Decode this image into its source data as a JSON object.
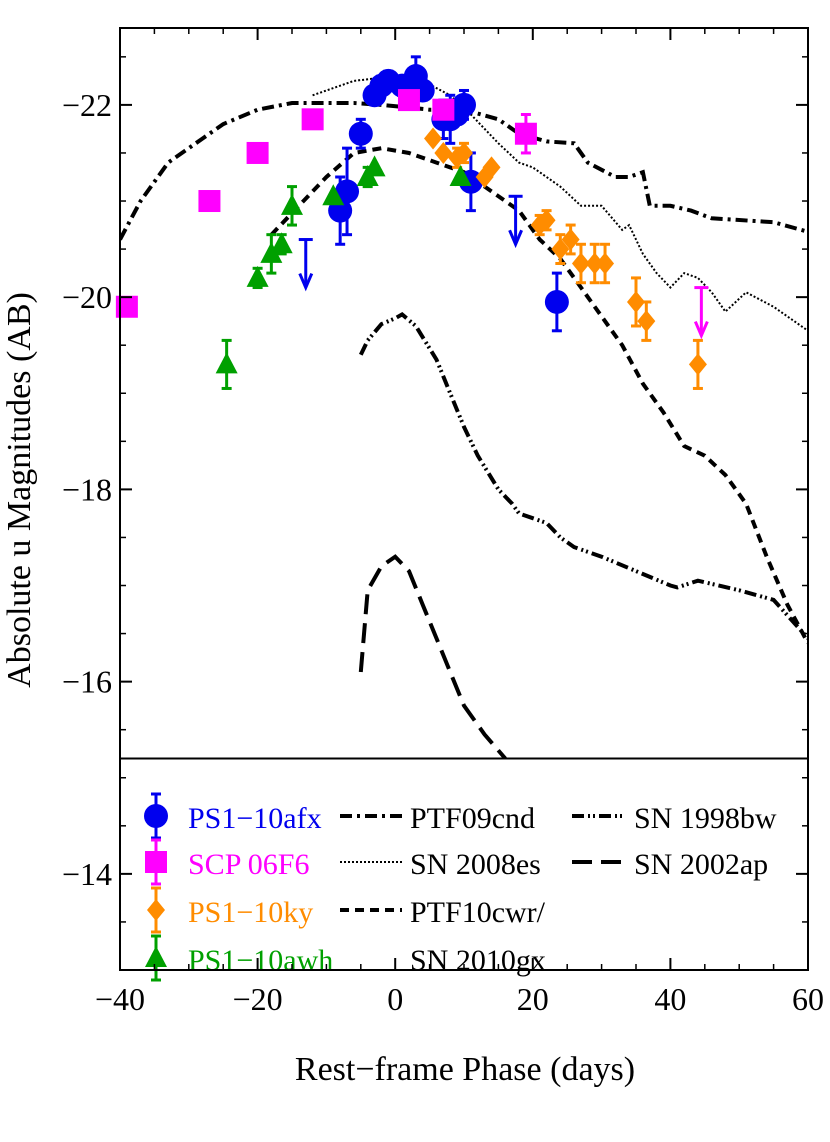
{
  "chart_data": {
    "type": "scatter",
    "xlabel": "Rest−frame Phase (days)",
    "ylabel": "Absolute u Magnitudes (AB)",
    "xlim": [
      -40,
      60
    ],
    "ylim": [
      -13,
      -22.8
    ],
    "y_inverted": true,
    "x_ticks": [
      -40,
      -20,
      0,
      20,
      40,
      60
    ],
    "x_tick_labels": [
      "−40",
      "−20",
      "0",
      "20",
      "40",
      "60"
    ],
    "y_ticks": [
      -14,
      -16,
      -18,
      -20,
      -22
    ],
    "y_tick_labels": [
      "−14",
      "−16",
      "−18",
      "−20",
      "−22"
    ],
    "legend_divider_y": -15.2,
    "points": [
      {
        "name": "PS1−10afx",
        "color": "#0000ee",
        "marker": "circle",
        "data": [
          {
            "x": -8,
            "y": -20.9,
            "err": 0.35
          },
          {
            "x": -7,
            "y": -21.1,
            "err": 0.45
          },
          {
            "x": -5,
            "y": -21.7,
            "err": 0.15
          },
          {
            "x": -3,
            "y": -22.1,
            "err": 0.1
          },
          {
            "x": -2,
            "y": -22.2,
            "err": 0.1
          },
          {
            "x": -1,
            "y": -22.25,
            "err": 0.1
          },
          {
            "x": 1,
            "y": -22.2,
            "err": 0.1
          },
          {
            "x": 3,
            "y": -22.3,
            "err": 0.2
          },
          {
            "x": 4,
            "y": -22.15,
            "err": 0.1
          },
          {
            "x": 7,
            "y": -21.85,
            "err": 0.2
          },
          {
            "x": 8,
            "y": -21.85,
            "err": 0.25
          },
          {
            "x": 9,
            "y": -21.9,
            "err": 0.1
          },
          {
            "x": 10,
            "y": -22.0,
            "err": 0.15
          },
          {
            "x": 11,
            "y": -21.2,
            "err": 0.3
          },
          {
            "x": 23.5,
            "y": -19.95,
            "err": 0.3
          }
        ]
      },
      {
        "name": "SCP 06F6",
        "color": "#ff00ff",
        "marker": "square",
        "data": [
          {
            "x": -39,
            "y": -19.9,
            "err": 0
          },
          {
            "x": -27,
            "y": -21.0,
            "err": 0
          },
          {
            "x": -20,
            "y": -21.5,
            "err": 0
          },
          {
            "x": -12,
            "y": -21.85,
            "err": 0
          },
          {
            "x": 2,
            "y": -22.05,
            "err": 0
          },
          {
            "x": 7,
            "y": -21.95,
            "err": 0
          },
          {
            "x": 19,
            "y": -21.7,
            "err": 0.2
          }
        ]
      },
      {
        "name": "PS1−10ky",
        "color": "#ff8c00",
        "marker": "diamond",
        "data": [
          {
            "x": 5.5,
            "y": -21.65,
            "err": 0
          },
          {
            "x": 7,
            "y": -21.5,
            "err": 0
          },
          {
            "x": 9,
            "y": -21.45,
            "err": 0.1
          },
          {
            "x": 10,
            "y": -21.5,
            "err": 0.1
          },
          {
            "x": 13,
            "y": -21.25,
            "err": 0
          },
          {
            "x": 14,
            "y": -21.35,
            "err": 0
          },
          {
            "x": 21,
            "y": -20.75,
            "err": 0.1
          },
          {
            "x": 22,
            "y": -20.8,
            "err": 0.1
          },
          {
            "x": 24,
            "y": -20.5,
            "err": 0.15
          },
          {
            "x": 25.5,
            "y": -20.6,
            "err": 0.15
          },
          {
            "x": 27,
            "y": -20.35,
            "err": 0.2
          },
          {
            "x": 29,
            "y": -20.35,
            "err": 0.2
          },
          {
            "x": 30.5,
            "y": -20.35,
            "err": 0.2
          },
          {
            "x": 35,
            "y": -19.95,
            "err": 0.25
          },
          {
            "x": 36.5,
            "y": -19.75,
            "err": 0.2
          },
          {
            "x": 44,
            "y": -19.3,
            "err": 0.25
          }
        ]
      },
      {
        "name": "PS1−10awh",
        "color": "#00a000",
        "marker": "triangle",
        "data": [
          {
            "x": -24.5,
            "y": -19.3,
            "err": 0.25
          },
          {
            "x": -20,
            "y": -20.2,
            "err": 0.1
          },
          {
            "x": -18,
            "y": -20.45,
            "err": 0.2
          },
          {
            "x": -16.5,
            "y": -20.55,
            "err": 0.1
          },
          {
            "x": -15,
            "y": -20.95,
            "err": 0.2
          },
          {
            "x": -9,
            "y": -21.05,
            "err": 0
          },
          {
            "x": -4,
            "y": -21.25,
            "err": 0.1
          },
          {
            "x": -3,
            "y": -21.35,
            "err": 0
          },
          {
            "x": 9.5,
            "y": -21.25,
            "err": 0
          }
        ]
      }
    ],
    "upper_limits": [
      {
        "x": -13,
        "y": -20.1,
        "color": "#0000ee"
      },
      {
        "x": 17.5,
        "y": -20.55,
        "color": "#0000ee"
      },
      {
        "x": 44.5,
        "y": -19.6,
        "color": "#ff00ff"
      }
    ],
    "lines": [
      {
        "name": "PTF09cnd",
        "style": "dashdot",
        "data": [
          [
            -40,
            -20.6
          ],
          [
            -37,
            -21.0
          ],
          [
            -33,
            -21.4
          ],
          [
            -28,
            -21.65
          ],
          [
            -25,
            -21.8
          ],
          [
            -20,
            -21.95
          ],
          [
            -15,
            -22.02
          ],
          [
            -10,
            -22.02
          ],
          [
            -6,
            -22.02
          ],
          [
            -2,
            -22.0
          ],
          [
            1,
            -21.98
          ],
          [
            5,
            -21.95
          ],
          [
            10,
            -21.95
          ],
          [
            15,
            -21.85
          ],
          [
            18,
            -21.7
          ],
          [
            22,
            -21.62
          ],
          [
            26,
            -21.6
          ],
          [
            28,
            -21.4
          ],
          [
            32,
            -21.25
          ],
          [
            34,
            -21.25
          ],
          [
            36,
            -21.3
          ],
          [
            37,
            -20.95
          ],
          [
            40,
            -20.95
          ],
          [
            43,
            -20.9
          ],
          [
            46,
            -20.82
          ],
          [
            55,
            -20.78
          ],
          [
            60,
            -20.68
          ]
        ]
      },
      {
        "name": "SN 2008es",
        "style": "dotted",
        "data": [
          [
            -12,
            -22.1
          ],
          [
            -6,
            -22.25
          ],
          [
            0,
            -22.3
          ],
          [
            4,
            -22.25
          ],
          [
            8,
            -22.1
          ],
          [
            11,
            -21.9
          ],
          [
            15,
            -21.6
          ],
          [
            18,
            -21.4
          ],
          [
            20,
            -21.35
          ],
          [
            24,
            -21.15
          ],
          [
            27,
            -20.95
          ],
          [
            30,
            -20.95
          ],
          [
            33,
            -20.7
          ],
          [
            34,
            -20.75
          ],
          [
            36,
            -20.45
          ],
          [
            38,
            -20.25
          ],
          [
            40,
            -20.1
          ],
          [
            42,
            -20.25
          ],
          [
            44,
            -20.2
          ],
          [
            46,
            -20.05
          ],
          [
            48,
            -19.85
          ],
          [
            51,
            -20.05
          ],
          [
            55,
            -19.9
          ],
          [
            60,
            -19.65
          ]
        ]
      },
      {
        "name": "PTF10cwr/ SN 2010gx",
        "style": "dashed-short",
        "data": [
          [
            -18,
            -20.65
          ],
          [
            -14,
            -20.95
          ],
          [
            -10,
            -21.25
          ],
          [
            -6,
            -21.5
          ],
          [
            -2,
            -21.55
          ],
          [
            2,
            -21.5
          ],
          [
            6,
            -21.4
          ],
          [
            10,
            -21.3
          ],
          [
            14,
            -21.1
          ],
          [
            18,
            -20.9
          ],
          [
            21,
            -20.6
          ],
          [
            24,
            -20.4
          ],
          [
            27,
            -20.1
          ],
          [
            30,
            -19.8
          ],
          [
            33,
            -19.5
          ],
          [
            36,
            -19.1
          ],
          [
            39,
            -18.8
          ],
          [
            42,
            -18.45
          ],
          [
            45,
            -18.35
          ],
          [
            48,
            -18.15
          ],
          [
            51,
            -17.85
          ],
          [
            54,
            -17.3
          ],
          [
            57,
            -16.8
          ],
          [
            60,
            -16.4
          ]
        ]
      },
      {
        "name": "SN 1998bw",
        "style": "dashdotdot",
        "data": [
          [
            -5,
            -19.4
          ],
          [
            -4,
            -19.55
          ],
          [
            -2,
            -19.72
          ],
          [
            0,
            -19.78
          ],
          [
            1,
            -19.82
          ],
          [
            3,
            -19.7
          ],
          [
            6,
            -19.35
          ],
          [
            8,
            -19.0
          ],
          [
            10,
            -18.65
          ],
          [
            12,
            -18.35
          ],
          [
            15,
            -18.0
          ],
          [
            17,
            -17.85
          ],
          [
            18,
            -17.75
          ],
          [
            20,
            -17.7
          ],
          [
            22,
            -17.65
          ],
          [
            24,
            -17.5
          ],
          [
            26,
            -17.4
          ],
          [
            30,
            -17.3
          ],
          [
            35,
            -17.15
          ],
          [
            40,
            -17.0
          ],
          [
            41,
            -16.98
          ],
          [
            44,
            -17.05
          ],
          [
            50,
            -16.95
          ],
          [
            55,
            -16.85
          ],
          [
            60,
            -16.45
          ]
        ]
      },
      {
        "name": "SN 2002ap",
        "style": "dashed-long",
        "data": [
          [
            -5,
            -16.1
          ],
          [
            -4,
            -16.95
          ],
          [
            -2,
            -17.2
          ],
          [
            0,
            -17.3
          ],
          [
            2,
            -17.15
          ],
          [
            4,
            -16.8
          ],
          [
            6,
            -16.45
          ],
          [
            8,
            -16.1
          ],
          [
            10,
            -15.75
          ],
          [
            13,
            -15.45
          ],
          [
            16,
            -15.2
          ]
        ]
      }
    ],
    "legend": {
      "placement": "bottom-inside",
      "points": [
        {
          "label": "PS1−10afx",
          "color": "#0000ee",
          "marker": "circle"
        },
        {
          "label": "SCP 06F6",
          "color": "#ff00ff",
          "marker": "square"
        },
        {
          "label": "PS1−10ky",
          "color": "#ff8c00",
          "marker": "diamond"
        },
        {
          "label": "PS1−10awh",
          "color": "#00a000",
          "marker": "triangle"
        }
      ],
      "lines_col1": [
        {
          "label": "PTF09cnd",
          "style": "dashdot"
        },
        {
          "label": "SN 2008es",
          "style": "dotted"
        },
        {
          "label": "PTF10cwr/",
          "style": "dashed-short"
        },
        {
          "label": "SN 2010gx",
          "style": "none"
        }
      ],
      "lines_col2": [
        {
          "label": "SN 1998bw",
          "style": "dashdotdot"
        },
        {
          "label": "SN 2002ap",
          "style": "dashed-long"
        }
      ]
    }
  }
}
